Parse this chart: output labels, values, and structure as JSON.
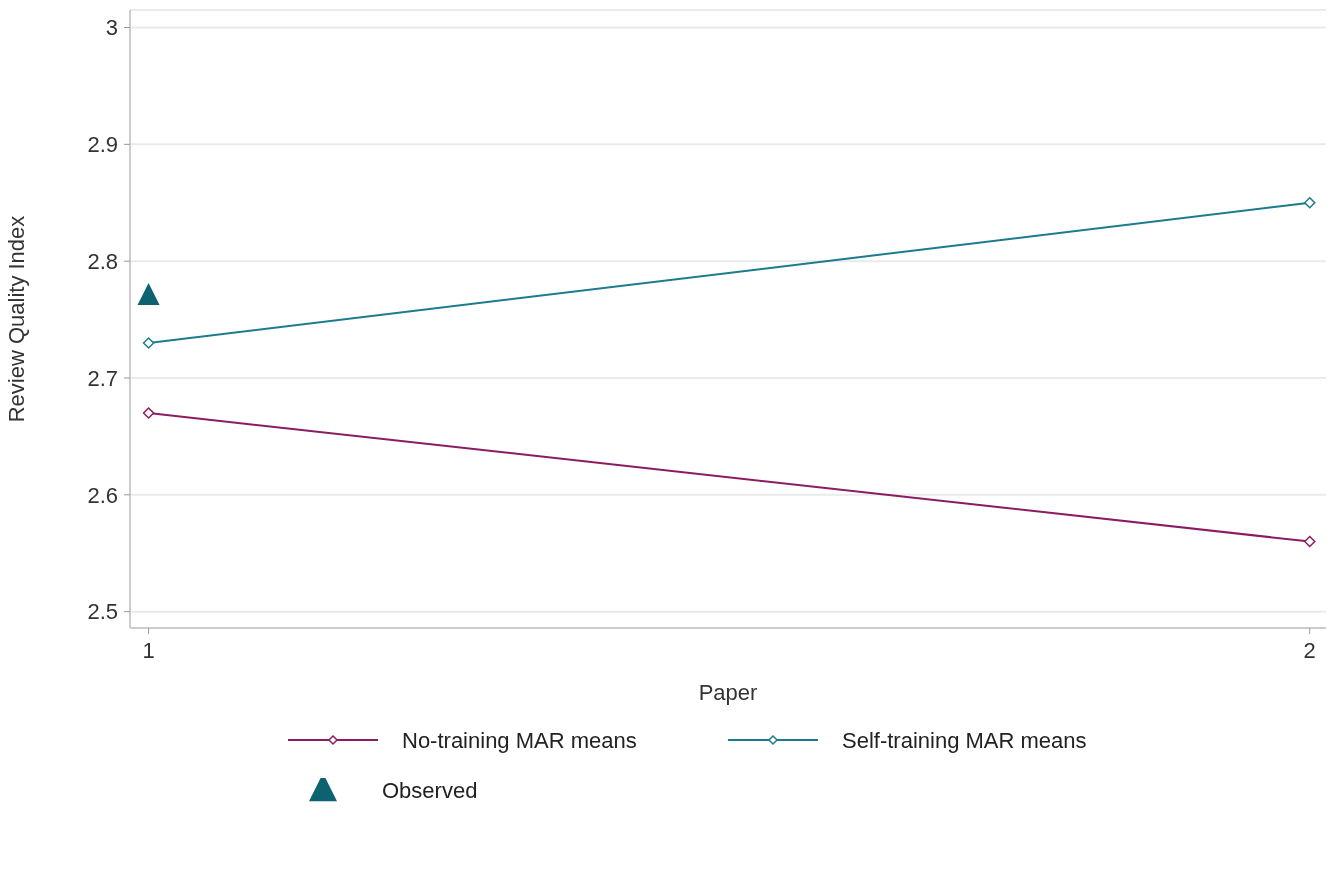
{
  "chart_data": {
    "type": "line",
    "xlabel": "Paper",
    "ylabel": "Review Quality Index",
    "xlim": [
      0.984,
      2.014
    ],
    "xticks": [
      1,
      2
    ],
    "ylim": [
      2.486,
      3.015
    ],
    "yticks": [
      2.5,
      2.6,
      2.7,
      2.8,
      2.9,
      3
    ],
    "x": [
      1,
      2
    ],
    "grid": "y",
    "legend": "bottom",
    "marker": "diamond",
    "line_style": "solid",
    "series": [
      {
        "name": "No-training MAR means",
        "color": "#8b1c62",
        "values": [
          2.67,
          2.56
        ]
      },
      {
        "name": "Self-training MAR means",
        "color": "#1a7c8c",
        "values": [
          2.73,
          2.85
        ]
      },
      {
        "name": "Observed",
        "type": "scatter",
        "marker": "triangle",
        "color": "#0d6270",
        "x": [
          1
        ],
        "values": [
          2.77
        ]
      }
    ]
  }
}
